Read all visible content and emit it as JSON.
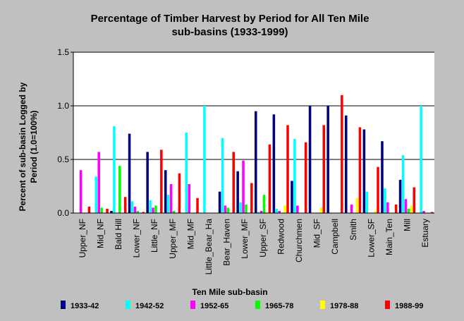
{
  "chart_data": {
    "type": "bar",
    "title_line1": "Percentage of Timber Harvest by Period for All Ten Mile",
    "title_line2": "sub-basins (1933-1999)",
    "xlabel": "Ten Mile sub-basin",
    "ylabel_line1": "Percent of sub-basin Logged by",
    "ylabel_line2": "Period (1.0=100%)",
    "ylim": [
      0,
      1.5
    ],
    "yticks": [
      "0.0",
      "0.5",
      "1.0",
      "1.5"
    ],
    "grid": "horizontal",
    "legend_position": "bottom",
    "categories": [
      "Upper_NF",
      "Mid_NF",
      "Bald Hill",
      "Lower_NF",
      "Little_NF",
      "Upper_MF",
      "Mid_MF",
      "Little_Bear_Ha",
      "Bear_Haven",
      "Lower_MF",
      "Upper_SF",
      "Redwood",
      "Churchmen",
      "Mid_SF",
      "Campbell",
      "Smith",
      "Lower_SF",
      "Main_Ten",
      "Mill",
      "Estuary"
    ],
    "series": [
      {
        "name": "1933-42",
        "color": "#000080",
        "values": [
          0,
          0,
          0.02,
          0.74,
          0.57,
          0.4,
          0,
          0,
          0.2,
          0.39,
          0.95,
          0.92,
          0.3,
          1.0,
          1.0,
          0.91,
          0.78,
          0.67,
          0.31,
          0
        ]
      },
      {
        "name": "1942-52",
        "color": "#00ffff",
        "values": [
          0,
          0.34,
          0.81,
          0.11,
          0.12,
          0.17,
          0.75,
          1.0,
          0.7,
          0.1,
          0.01,
          0.04,
          0.69,
          0,
          0,
          0,
          0.2,
          0.23,
          0.54,
          1.0
        ]
      },
      {
        "name": "1952-65",
        "color": "#ff00ff",
        "values": [
          0.4,
          0.57,
          0,
          0.06,
          0.05,
          0.27,
          0.27,
          0,
          0.07,
          0.49,
          0.02,
          0.02,
          0.07,
          0,
          0,
          0.08,
          0,
          0.1,
          0.13,
          0.02
        ]
      },
      {
        "name": "1965-78",
        "color": "#00ff00",
        "values": [
          0,
          0.05,
          0.44,
          0.02,
          0.07,
          0.02,
          0,
          0,
          0.05,
          0.08,
          0.17,
          0,
          0,
          0,
          0,
          0,
          0,
          0,
          0.04,
          0
        ]
      },
      {
        "name": "1978-88",
        "color": "#ffff00",
        "values": [
          0,
          0,
          0,
          0,
          0,
          0,
          0,
          0,
          0,
          0,
          0.01,
          0.07,
          0,
          0.05,
          0,
          0.14,
          0.02,
          0,
          0.07,
          0
        ]
      },
      {
        "name": "1988-99",
        "color": "#ff0000",
        "values": [
          0.06,
          0.04,
          0.15,
          0.01,
          0.59,
          0.37,
          0.14,
          0,
          0.57,
          0.28,
          0.64,
          0.82,
          0.66,
          0.82,
          1.1,
          0.8,
          0.43,
          0.08,
          0.24,
          0.01
        ]
      }
    ]
  }
}
